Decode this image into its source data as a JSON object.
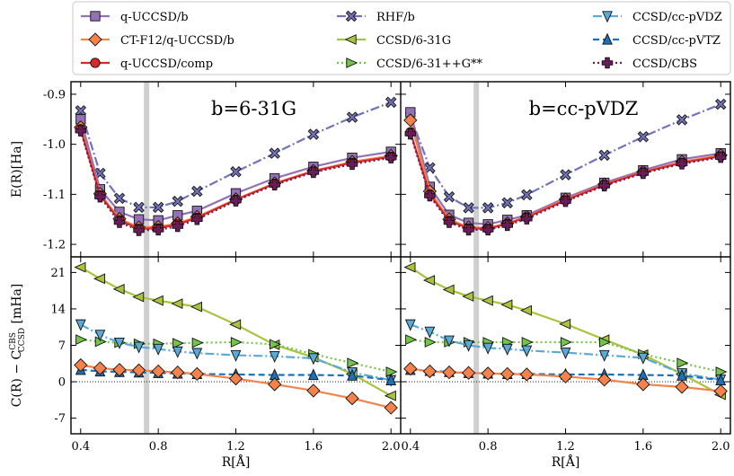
{
  "chart_data": {
    "type": "line",
    "legend": {
      "placement": "top",
      "entries": [
        {
          "key": "qucc",
          "label": "q-UCCSD/b",
          "color": "#9470b5",
          "marker": "square",
          "dash": "solid"
        },
        {
          "key": "ctf12",
          "label": "CT-F12/q-UCCSD/b",
          "color": "#f4824a",
          "marker": "diamond",
          "dash": "solid"
        },
        {
          "key": "quccomp",
          "label": "q-UCCSD/comp",
          "color": "#d62a2a",
          "marker": "circle",
          "dash": "solid"
        },
        {
          "key": "rhf",
          "label": "RHF/b",
          "color": "#7273b8",
          "marker": "x",
          "dash": "dashdot"
        },
        {
          "key": "c631",
          "label": "CCSD/6-31G",
          "color": "#a7c43c",
          "marker": "triangle-left",
          "dash": "solid"
        },
        {
          "key": "c631pp",
          "label": "CCSD/6-31++G**",
          "color": "#73c44a",
          "marker": "triangle-right",
          "dash": "dotted"
        },
        {
          "key": "cdz",
          "label": "CCSD/cc-pVDZ",
          "color": "#5aaad5",
          "marker": "triangle-down",
          "dash": "dashdot"
        },
        {
          "key": "ctz",
          "label": "CCSD/cc-pVTZ",
          "color": "#1f6fb4",
          "marker": "triangle-up",
          "dash": "dashed"
        },
        {
          "key": "cbs",
          "label": "CCSD/CBS",
          "color": "#6a1b5a",
          "marker": "plus",
          "dash": "dotted"
        }
      ]
    },
    "x": [
      0.4,
      0.5,
      0.6,
      0.7,
      0.8,
      0.9,
      1.0,
      1.2,
      1.4,
      1.6,
      1.8,
      2.0
    ],
    "xlabel": "R[Å]",
    "xlim": [
      0.35,
      2.05
    ],
    "xticks": [
      0.4,
      0.8,
      1.2,
      1.6,
      2.0
    ],
    "xtick_labels": [
      "0.4",
      "0.8",
      "1.2",
      "1.6",
      "2.0"
    ],
    "vline_x": 0.74,
    "top_row": {
      "ylabel": "E(R)[Ha]",
      "ylim": [
        -1.225,
        -0.875
      ],
      "yticks": [
        -0.9,
        -1.0,
        -1.1,
        -1.2
      ],
      "ytick_labels": [
        "-0.9",
        "-1.0",
        "-1.1",
        "-1.2"
      ]
    },
    "bottom_row": {
      "ylabel_main": "C(R) − C",
      "ylabel_sup": "CBS",
      "ylabel_sub": "CCSD",
      "ylabel_unit": "[mHa]",
      "ylim": [
        -10,
        24
      ],
      "yticks": [
        21,
        14,
        7,
        0,
        -7
      ],
      "ytick_labels": [
        "21",
        "14",
        "7",
        "0",
        "-7"
      ],
      "zero_line": true
    },
    "panels": [
      {
        "title": "b=6-31G",
        "energy": {
          "qucc": [
            -0.95,
            -1.09,
            -1.135,
            -1.15,
            -1.152,
            -1.142,
            -1.133,
            -1.098,
            -1.068,
            -1.045,
            -1.027,
            -1.015
          ],
          "ctf12": [
            -0.966,
            -1.099,
            -1.149,
            -1.166,
            -1.165,
            -1.158,
            -1.145,
            -1.11,
            -1.078,
            -1.053,
            -1.035,
            -1.023
          ],
          "quccomp": [
            -0.97,
            -1.102,
            -1.152,
            -1.169,
            -1.168,
            -1.16,
            -1.147,
            -1.111,
            -1.079,
            -1.054,
            -1.037,
            -1.025
          ],
          "rhf": [
            -0.933,
            -1.058,
            -1.108,
            -1.126,
            -1.126,
            -1.114,
            -1.094,
            -1.055,
            -1.018,
            -0.98,
            -0.946,
            -0.916
          ],
          "cbs": [
            -0.973,
            -1.105,
            -1.156,
            -1.172,
            -1.171,
            -1.164,
            -1.15,
            -1.113,
            -1.081,
            -1.056,
            -1.04,
            -1.027
          ]
        },
        "correction": {
          "ctf12": [
            3.2,
            2.6,
            2.3,
            2.2,
            2.0,
            1.8,
            1.5,
            0.6,
            -0.5,
            -1.7,
            -3.2,
            -5.0
          ],
          "c631": [
            22.0,
            19.8,
            17.8,
            16.3,
            15.6,
            15.0,
            14.4,
            11.0,
            7.1,
            4.7,
            1.5,
            -2.7
          ],
          "c631pp": [
            8.1,
            7.7,
            7.5,
            7.3,
            7.3,
            7.4,
            7.5,
            7.6,
            7.2,
            5.3,
            3.6,
            1.9
          ],
          "cdz": [
            11.0,
            9.0,
            7.5,
            6.7,
            6.3,
            5.8,
            5.5,
            5.1,
            4.9,
            4.5,
            1.8,
            0.3
          ],
          "ctz": [
            2.3,
            2.0,
            1.9,
            1.8,
            1.7,
            1.6,
            1.5,
            1.4,
            1.3,
            1.3,
            1.2,
            0.3
          ]
        }
      },
      {
        "title": "b=cc-pVDZ",
        "energy": {
          "qucc": [
            -0.936,
            -1.085,
            -1.141,
            -1.157,
            -1.16,
            -1.151,
            -1.142,
            -1.107,
            -1.077,
            -1.052,
            -1.03,
            -1.018
          ],
          "ctf12": [
            -0.952,
            -1.094,
            -1.15,
            -1.166,
            -1.167,
            -1.158,
            -1.145,
            -1.11,
            -1.08,
            -1.055,
            -1.035,
            -1.022
          ],
          "quccomp": [
            -0.976,
            -1.1,
            -1.153,
            -1.168,
            -1.169,
            -1.159,
            -1.146,
            -1.112,
            -1.081,
            -1.056,
            -1.037,
            -1.024
          ],
          "rhf": [
            -0.944,
            -1.047,
            -1.105,
            -1.127,
            -1.127,
            -1.117,
            -1.101,
            -1.061,
            -1.022,
            -0.985,
            -0.951,
            -0.92
          ],
          "cbs": [
            -0.979,
            -1.103,
            -1.156,
            -1.171,
            -1.171,
            -1.162,
            -1.149,
            -1.114,
            -1.083,
            -1.058,
            -1.039,
            -1.026
          ]
        },
        "correction": {
          "ctf12": [
            2.5,
            2.0,
            1.8,
            1.7,
            1.6,
            1.5,
            1.4,
            1.0,
            0.4,
            -0.5,
            -1.0,
            -1.8
          ],
          "c631": [
            22.0,
            19.5,
            17.7,
            16.4,
            15.6,
            14.8,
            13.7,
            11.1,
            8.1,
            5.2,
            1.5,
            -2.5
          ],
          "c631pp": [
            8.1,
            7.6,
            7.6,
            7.6,
            7.6,
            7.6,
            7.6,
            7.6,
            7.6,
            5.3,
            3.6,
            1.9
          ],
          "cdz": [
            11.0,
            9.6,
            7.9,
            7.0,
            6.5,
            6.3,
            6.0,
            5.6,
            5.1,
            4.6,
            1.6,
            0.4
          ],
          "ctz": [
            2.3,
            2.1,
            1.9,
            1.7,
            1.6,
            1.5,
            1.5,
            1.4,
            1.4,
            1.3,
            1.2,
            0.3
          ]
        }
      }
    ]
  }
}
